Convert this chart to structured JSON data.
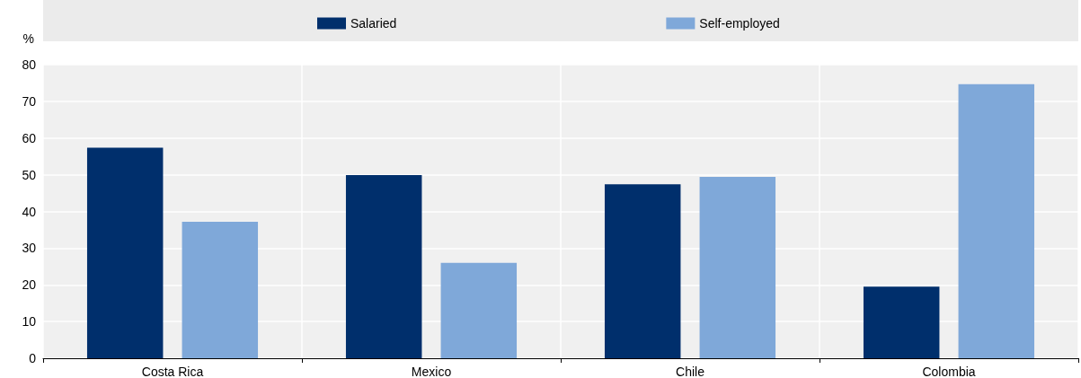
{
  "chart_data": {
    "type": "bar",
    "ylabel": "%",
    "categories": [
      "Costa Rica",
      "Mexico",
      "Chile",
      "Colombia"
    ],
    "series": [
      {
        "name": "Salaried",
        "color": "#002f6c",
        "values": [
          57.4,
          49.9,
          47.4,
          19.5
        ]
      },
      {
        "name": "Self-employed",
        "color": "#7fa8d9",
        "values": [
          37.2,
          26.0,
          49.4,
          74.7
        ]
      }
    ],
    "ylim": [
      0,
      80
    ],
    "yticks": [
      0,
      10,
      20,
      30,
      40,
      50,
      60,
      70,
      80
    ],
    "grid": true,
    "legend": "top"
  }
}
